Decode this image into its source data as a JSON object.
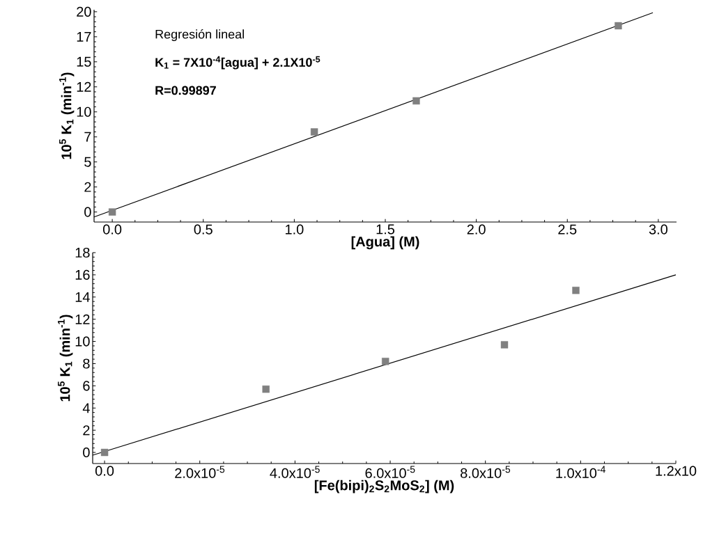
{
  "chart_data": [
    {
      "type": "scatter",
      "xlabel": "[Agua] (M)",
      "ylabel": "10$^{5}$ K$_{1}$ (min$^{-1}$)",
      "xlim": [
        -0.1,
        3.1
      ],
      "ylim": [
        -1,
        20.2
      ],
      "xticks": [
        {
          "value": 0,
          "label": "0.0"
        },
        {
          "value": 0.5,
          "label": "0.5"
        },
        {
          "value": 1,
          "label": "1.0"
        },
        {
          "value": 1.5,
          "label": "1.5"
        },
        {
          "value": 2,
          "label": "2.0"
        },
        {
          "value": 2.5,
          "label": "2.5"
        },
        {
          "value": 3,
          "label": "3.0"
        }
      ],
      "yticks": [
        0,
        {
          "value": 2.5,
          "label": "2"
        },
        5,
        {
          "value": 7.5,
          "label": "7"
        },
        10,
        {
          "value": 12.5,
          "label": "12"
        },
        15,
        {
          "value": 17.5,
          "label": "17"
        },
        20
      ],
      "annotations": [
        "Regresión lineal",
        "K$_{1}$ = 7X10$^{-4}$[agua] + 2.1X10$^{-5}$",
        "R=0.99897"
      ],
      "series": [
        {
          "color": "#808080",
          "marker": "square",
          "x": [
            0,
            1.11,
            1.67,
            2.78
          ],
          "values": [
            0,
            8.0,
            11.1,
            18.6
          ]
        },
        {
          "type": "line",
          "color": "#000000",
          "marker": "none",
          "line_style": "solid",
          "x": [
            -0.1,
            2.97
          ],
          "values": [
            -0.5,
            19.9
          ]
        }
      ]
    },
    {
      "type": "scatter",
      "xlabel": "[Fe(bipi)$_{2}$S$_{2}$MoS$_{2}$] (M)",
      "ylabel": "10$^{5}$ K$_{1}$ (min$^{-1}$)",
      "xlim": [
        -2.5e-06,
        0.00012
      ],
      "ylim": [
        -1,
        18
      ],
      "xticks": [
        {
          "value": 0,
          "label": "0.0"
        },
        {
          "value": 2e-05,
          "label": "2.0x10$^{-5}$"
        },
        {
          "value": 4e-05,
          "label": "4.0x10$^{-5}$"
        },
        {
          "value": 6e-05,
          "label": "6.0x10$^{-5}$"
        },
        {
          "value": 8e-05,
          "label": "8.0x10$^{-5}$"
        },
        {
          "value": 0.0001,
          "label": "1.0x10$^{-4}$"
        },
        {
          "value": 0.00012,
          "label": "1.2x10"
        }
      ],
      "yticks": [
        0,
        2,
        4,
        6,
        8,
        10,
        12,
        14,
        16,
        18
      ],
      "series": [
        {
          "color": "#808080",
          "marker": "square",
          "x": [
            0,
            3.39e-05,
            5.9e-05,
            8.4e-05,
            9.9e-05
          ],
          "values": [
            0,
            5.7,
            8.2,
            9.7,
            14.6
          ]
        },
        {
          "type": "line",
          "color": "#000000",
          "marker": "none",
          "line_style": "solid",
          "x": [
            -2.5e-06,
            0.00012
          ],
          "values": [
            -0.25,
            16.0
          ]
        }
      ]
    }
  ]
}
